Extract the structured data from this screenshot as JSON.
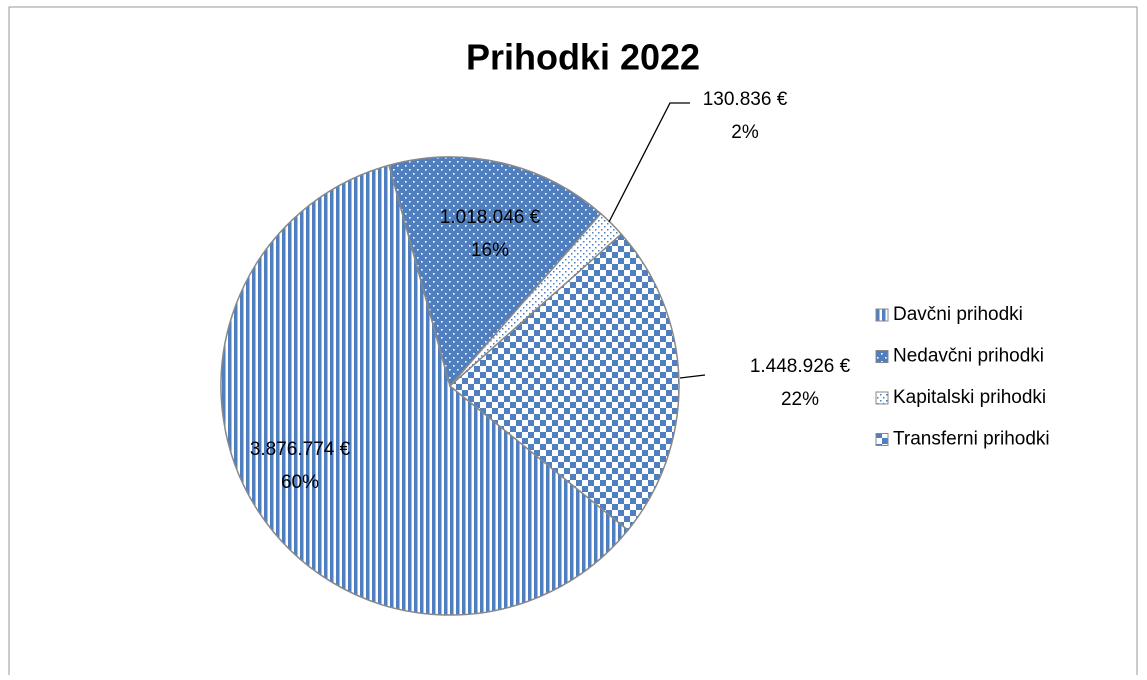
{
  "chart_data": {
    "type": "pie",
    "title": "Prihodki 2022",
    "categories": [
      "Davčni prihodki",
      "Nedavčni prihodki",
      "Kapitalski prihodki",
      "Transferni prihodki"
    ],
    "values": [
      3876774,
      1018046,
      130836,
      1448926
    ],
    "value_labels": [
      "3.876.774 €",
      "1.018.046 €",
      "130.836 €",
      "1.448.926 €"
    ],
    "percent_labels": [
      "60%",
      "16%",
      "2%",
      "22%"
    ],
    "color": "#4f7fbf",
    "legend": "right"
  }
}
